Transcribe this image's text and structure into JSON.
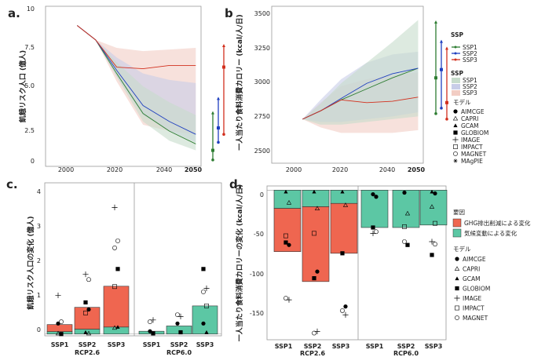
{
  "chart_data": [
    {
      "panel": "a.",
      "type": "line",
      "ylabel": "飢餓リスク人口 (億人)",
      "x_ticks": [
        "2000",
        "2020",
        "2040",
        "2050"
      ],
      "y_ticks": [
        "0",
        "2.5",
        "5.0",
        "7.5",
        "10"
      ],
      "xlim": [
        1993,
        2052
      ],
      "ylim": [
        0,
        10
      ],
      "x": [
        2005,
        2012,
        2020,
        2030,
        2040,
        2050
      ],
      "series": [
        {
          "name": "SSP1",
          "color": "#2e7d32",
          "values": [
            8.8,
            7.9,
            5.8,
            3.3,
            2.2,
            1.4
          ],
          "band_lo": [
            8.8,
            7.9,
            5.6,
            2.8,
            1.6,
            1.0
          ],
          "band_hi": [
            8.8,
            7.9,
            6.5,
            5.0,
            4.0,
            3.2
          ]
        },
        {
          "name": "SSP2",
          "color": "#1f3fbf",
          "values": [
            8.8,
            7.9,
            6.0,
            3.8,
            2.8,
            2.0
          ],
          "band_lo": [
            8.8,
            7.9,
            5.6,
            3.2,
            2.2,
            1.5
          ],
          "band_hi": [
            8.8,
            7.9,
            6.8,
            5.8,
            5.4,
            5.2
          ]
        },
        {
          "name": "SSP3",
          "color": "#d2301e",
          "values": [
            8.8,
            7.9,
            6.2,
            6.1,
            6.3,
            6.3
          ],
          "band_lo": [
            8.8,
            7.9,
            5.3,
            2.6,
            2.2,
            2.0
          ],
          "band_hi": [
            8.8,
            7.9,
            7.4,
            7.2,
            7.3,
            7.4
          ]
        }
      ],
      "ranges_2050": [
        {
          "name": "SSP1",
          "color": "#2e7d32",
          "min": 0.4,
          "max": 3.3,
          "median": 1.0
        },
        {
          "name": "SSP2",
          "color": "#1f3fbf",
          "min": 1.5,
          "max": 4.2,
          "median": 2.4
        },
        {
          "name": "SSP3",
          "color": "#d2301e",
          "min": 2.0,
          "max": 7.5,
          "median": 6.2
        }
      ]
    },
    {
      "panel": "b",
      "type": "line",
      "ylabel": "一人当たり食料消費カロリー (kcal/人/日)",
      "x_ticks": [
        "2000",
        "2020",
        "2040",
        "2050"
      ],
      "y_ticks": [
        "2500",
        "2750",
        "3000",
        "3250",
        "3500"
      ],
      "xlim": [
        1993,
        2052
      ],
      "ylim": [
        2420,
        3560
      ],
      "x": [
        2005,
        2012,
        2020,
        2030,
        2040,
        2050
      ],
      "series": [
        {
          "name": "SSP1",
          "color": "#2e7d32",
          "values": [
            2740,
            2800,
            2880,
            2960,
            3040,
            3110
          ],
          "band_lo": [
            2740,
            2700,
            2700,
            2720,
            2740,
            2760
          ],
          "band_hi": [
            2740,
            2850,
            3000,
            3150,
            3300,
            3460
          ]
        },
        {
          "name": "SSP2",
          "color": "#1f3fbf",
          "values": [
            2740,
            2800,
            2890,
            3000,
            3070,
            3110
          ],
          "band_lo": [
            2740,
            2720,
            2720,
            2740,
            2760,
            2790
          ],
          "band_hi": [
            2740,
            2880,
            3030,
            3150,
            3210,
            3230
          ]
        },
        {
          "name": "SSP3",
          "color": "#d2301e",
          "values": [
            2740,
            2800,
            2880,
            2860,
            2870,
            2900
          ],
          "band_lo": [
            2740,
            2680,
            2640,
            2640,
            2640,
            2660
          ],
          "band_hi": [
            2740,
            2860,
            2980,
            3030,
            3060,
            3080
          ]
        }
      ],
      "ranges_2050": [
        {
          "name": "SSP1",
          "color": "#2e7d32",
          "min": 2780,
          "max": 3440,
          "median": 3040
        },
        {
          "name": "SSP2",
          "color": "#1f3fbf",
          "min": 2820,
          "max": 3300,
          "median": 3100
        },
        {
          "name": "SSP3",
          "color": "#d2301e",
          "min": 2740,
          "max": 3250,
          "median": 2860
        }
      ],
      "legend": {
        "ssp_title": "SSP",
        "ssp_items": [
          "SSP1",
          "SSP2",
          "SSP3"
        ],
        "band_title": "SSP",
        "band_items": [
          "SSP1",
          "SSP2",
          "SSP3"
        ],
        "model_title": "モデル",
        "models": [
          {
            "name": "AIMCGE",
            "marker": "dot"
          },
          {
            "name": "CAPRI",
            "marker": "tri-open"
          },
          {
            "name": "GCAM",
            "marker": "tri"
          },
          {
            "name": "GLOBIOM",
            "marker": "square"
          },
          {
            "name": "IMAGE",
            "marker": "plus"
          },
          {
            "name": "IMPACT",
            "marker": "square-open"
          },
          {
            "name": "MAGNET",
            "marker": "circle-open"
          },
          {
            "name": "MAgPIE",
            "marker": "star"
          }
        ]
      }
    },
    {
      "panel": "c.",
      "type": "bar",
      "ylabel": "飢餓リスク人口の変化 (億人)",
      "y_ticks": [
        "0",
        "1",
        "2",
        "3",
        "4"
      ],
      "ylim": [
        -0.05,
        4.3
      ],
      "categories": [
        "SSP1",
        "SSP2",
        "SSP3",
        "SSP1",
        "SSP2",
        "SSP3"
      ],
      "groups": [
        "RCP2.6",
        "RCP6.0"
      ],
      "series": [
        {
          "name": "GHG排出削減による変化",
          "color": "#ef6650",
          "values": [
            0.2,
            0.62,
            1.16,
            0.0,
            0.0,
            0.0
          ]
        },
        {
          "name": "気候変動による変化",
          "color": "#5cc7a4",
          "values": [
            0.07,
            0.14,
            0.2,
            0.08,
            0.23,
            0.8
          ]
        }
      ],
      "points": [
        [
          {
            "m": "plus",
            "v": 1.1
          },
          {
            "m": "circle-open",
            "v": 0.35
          },
          {
            "m": "dot",
            "v": 0.3
          },
          {
            "m": "square",
            "v": 0.0
          },
          {
            "m": "tri-open",
            "v": 0.02
          }
        ],
        [
          {
            "m": "plus",
            "v": 1.7
          },
          {
            "m": "circle-open",
            "v": 1.55
          },
          {
            "m": "square",
            "v": 0.9
          },
          {
            "m": "dot",
            "v": 0.7
          },
          {
            "m": "tri",
            "v": 0.05
          },
          {
            "m": "tri-open",
            "v": 0.02
          },
          {
            "m": "square-open",
            "v": 0.6
          }
        ],
        [
          {
            "m": "plus",
            "v": 3.6
          },
          {
            "m": "circle-open",
            "v": 2.65
          },
          {
            "m": "circle-open",
            "v": 2.45
          },
          {
            "m": "square",
            "v": 1.85
          },
          {
            "m": "square-open",
            "v": 1.35
          },
          {
            "m": "tri",
            "v": 0.2
          },
          {
            "m": "tri-open",
            "v": 0.18
          }
        ],
        [
          {
            "m": "circle-open",
            "v": 0.35
          },
          {
            "m": "plus",
            "v": 0.4
          },
          {
            "m": "dot",
            "v": 0.08
          },
          {
            "m": "square",
            "v": 0.02
          }
        ],
        [
          {
            "m": "circle-open",
            "v": 0.55
          },
          {
            "m": "plus",
            "v": 0.5
          },
          {
            "m": "dot",
            "v": 0.3
          },
          {
            "m": "square",
            "v": 0.05
          }
        ],
        [
          {
            "m": "square",
            "v": 1.85
          },
          {
            "m": "plus",
            "v": 1.3
          },
          {
            "m": "circle-open",
            "v": 1.2
          },
          {
            "m": "square-open",
            "v": 0.8
          },
          {
            "m": "dot",
            "v": 0.3
          },
          {
            "m": "tri",
            "v": 0.05
          }
        ]
      ]
    },
    {
      "panel": "d.",
      "type": "bar",
      "ylabel": "一人当たり食料消費カロリーの変化 (kcal/人/日)",
      "y_ticks": [
        "-150",
        "-100",
        "-50",
        "0"
      ],
      "ylim": [
        -180,
        5
      ],
      "categories": [
        "SSP1",
        "SSP2",
        "SSP3",
        "SSP1",
        "SSP2",
        "SSP3"
      ],
      "groups": [
        "RCP2.6",
        "RCP6.0"
      ],
      "series": [
        {
          "name": "GHG排出削減による変化",
          "color": "#ef6650",
          "values": [
            -52,
            -90,
            -60,
            0,
            0,
            0
          ]
        },
        {
          "name": "気候変動による変化",
          "color": "#5cc7a4",
          "values": [
            -22,
            -20,
            -16,
            -45,
            -45,
            -42
          ]
        }
      ],
      "points": [
        [
          {
            "m": "tri",
            "v": -2
          },
          {
            "m": "tri-open",
            "v": -15
          },
          {
            "m": "square-open",
            "v": -55
          },
          {
            "m": "dot",
            "v": -66
          },
          {
            "m": "square",
            "v": -63
          },
          {
            "m": "plus",
            "v": -132
          },
          {
            "m": "circle-open",
            "v": -130
          }
        ],
        [
          {
            "m": "tri",
            "v": -2
          },
          {
            "m": "tri-open",
            "v": -22
          },
          {
            "m": "square-open",
            "v": -52
          },
          {
            "m": "dot",
            "v": -98
          },
          {
            "m": "square",
            "v": -106
          },
          {
            "m": "plus",
            "v": -170
          },
          {
            "m": "circle-open",
            "v": -172
          }
        ],
        [
          {
            "m": "tri",
            "v": -2
          },
          {
            "m": "tri-open",
            "v": -18
          },
          {
            "m": "square",
            "v": -76
          },
          {
            "m": "dot",
            "v": -140
          },
          {
            "m": "circle-open",
            "v": -145
          },
          {
            "m": "plus",
            "v": -150
          }
        ],
        [
          {
            "m": "dot",
            "v": -5
          },
          {
            "m": "dot",
            "v": -8
          },
          {
            "m": "square",
            "v": -45
          },
          {
            "m": "circle-open",
            "v": -50
          },
          {
            "m": "plus",
            "v": -52
          }
        ],
        [
          {
            "m": "dot",
            "v": -3
          },
          {
            "m": "tri-open",
            "v": -28
          },
          {
            "m": "square-open",
            "v": -44
          },
          {
            "m": "square",
            "v": -66
          },
          {
            "m": "circle-open",
            "v": -62
          }
        ],
        [
          {
            "m": "tri",
            "v": -2
          },
          {
            "m": "dot",
            "v": -4
          },
          {
            "m": "tri-open",
            "v": -20
          },
          {
            "m": "square-open",
            "v": -40
          },
          {
            "m": "plus",
            "v": -62
          },
          {
            "m": "circle-open",
            "v": -65
          },
          {
            "m": "square",
            "v": -78
          }
        ]
      ],
      "legend": {
        "factor_title": "要因",
        "factor_items": [
          {
            "label": "GHG排出削減による変化",
            "color": "#ef6650"
          },
          {
            "label": "気候変動による変化",
            "color": "#5cc7a4"
          }
        ],
        "model_title": "モデル",
        "models": [
          {
            "name": "AIMCGE",
            "marker": "dot"
          },
          {
            "name": "CAPRI",
            "marker": "tri-open"
          },
          {
            "name": "GCAM",
            "marker": "tri"
          },
          {
            "name": "GLOBIOM",
            "marker": "square"
          },
          {
            "name": "IMAGE",
            "marker": "plus"
          },
          {
            "name": "IMPACT",
            "marker": "square-open"
          },
          {
            "name": "MAGNET",
            "marker": "circle-open"
          }
        ]
      }
    }
  ]
}
